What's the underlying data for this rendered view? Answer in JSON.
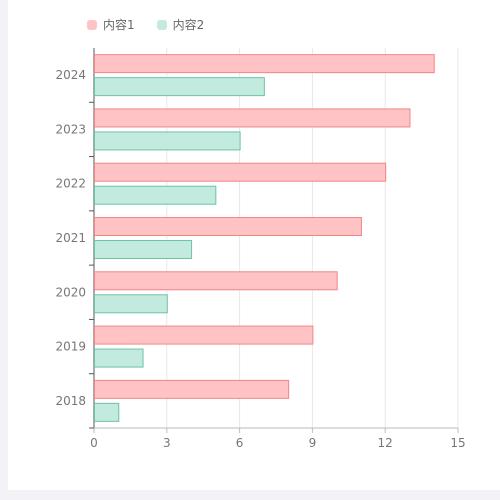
{
  "legend": [
    {
      "name": "内容1",
      "fill": "#ffc3c6",
      "stroke": "#f08686"
    },
    {
      "name": "内容2",
      "fill": "#c3eadf",
      "stroke": "#6cc3a8"
    }
  ],
  "chart_data": {
    "type": "bar",
    "orientation": "horizontal",
    "categories": [
      "2018",
      "2019",
      "2020",
      "2021",
      "2022",
      "2023",
      "2024"
    ],
    "series": [
      {
        "name": "内容1",
        "values": [
          8,
          9,
          10,
          11,
          12,
          13,
          14
        ],
        "fill": "#ffc3c6",
        "stroke": "#f08686"
      },
      {
        "name": "内容2",
        "values": [
          1,
          2,
          3,
          4,
          5,
          6,
          7
        ],
        "fill": "#c3eadf",
        "stroke": "#6cc3a8"
      }
    ],
    "xlim": [
      0,
      15
    ],
    "xticks": [
      0,
      3,
      6,
      9,
      12,
      15
    ],
    "xlabel": "",
    "ylabel": "",
    "title": "",
    "grid": "vertical",
    "legend_position": "top-left"
  }
}
